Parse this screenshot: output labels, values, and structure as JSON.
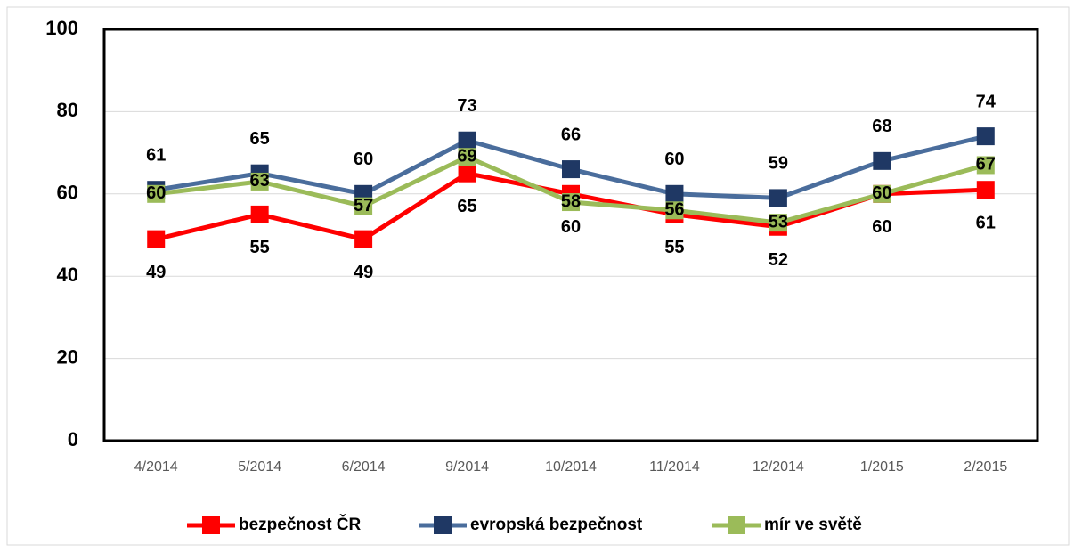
{
  "chart_data": {
    "type": "line",
    "categories": [
      "4/2014",
      "5/2014",
      "6/2014",
      "9/2014",
      "10/2014",
      "11/2014",
      "12/2014",
      "1/2015",
      "2/2015"
    ],
    "series": [
      {
        "name": "bezpečnost ČR",
        "color": "#ff0000",
        "values": [
          49,
          55,
          49,
          65,
          60,
          55,
          52,
          60,
          61
        ]
      },
      {
        "name": "evropská bezpečnost",
        "color": "#1f3864",
        "values": [
          61,
          65,
          60,
          73,
          66,
          60,
          59,
          68,
          74
        ]
      },
      {
        "name": "mír ve světě",
        "color": "#9bbb59",
        "values": [
          60,
          63,
          57,
          69,
          58,
          56,
          53,
          60,
          67
        ]
      }
    ],
    "ylim": [
      0,
      100
    ],
    "yticks": [
      0,
      20,
      40,
      60,
      80,
      100
    ],
    "grid": true,
    "legend": "bottom"
  }
}
